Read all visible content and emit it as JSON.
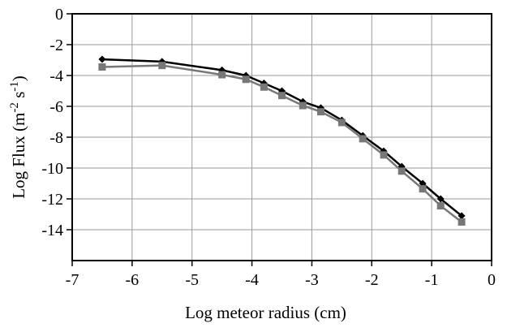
{
  "chart_data": {
    "type": "line",
    "xlabel": "Log meteor radius (cm)",
    "ylabel_main": "Log Flux (m",
    "ylabel_exp1": "-2",
    "ylabel_mid": " s",
    "ylabel_exp2": "-1",
    "ylabel_end": ")",
    "xlim": [
      -7,
      0
    ],
    "ylim": [
      -16,
      0
    ],
    "xticks": [
      -7,
      -6,
      -5,
      -4,
      -3,
      -2,
      -1,
      0
    ],
    "yticks": [
      0,
      -2,
      -4,
      -6,
      -8,
      -10,
      -12,
      -14
    ],
    "xtick_labels": [
      "-7",
      "-6",
      "-5",
      "-4",
      "-3",
      "-2",
      "-1",
      "0"
    ],
    "ytick_labels": [
      "0",
      "-2",
      "-4",
      "-6",
      "-8",
      "-10",
      "-12",
      "-14"
    ],
    "grid": true,
    "series": [
      {
        "color": "#000000",
        "marker": "diamond",
        "x": [
          -6.5,
          -5.5,
          -4.5,
          -4.1,
          -3.8,
          -3.5,
          -3.15,
          -2.85,
          -2.5,
          -2.15,
          -1.8,
          -1.5,
          -1.15,
          -0.85,
          -0.5
        ],
        "y": [
          -2.95,
          -3.1,
          -3.65,
          -4.0,
          -4.5,
          -5.0,
          -5.7,
          -6.1,
          -6.9,
          -7.9,
          -8.9,
          -9.9,
          -11.0,
          -12.0,
          -13.1
        ]
      },
      {
        "color": "#777777",
        "marker": "square",
        "x": [
          -6.5,
          -5.5,
          -4.5,
          -4.1,
          -3.8,
          -3.5,
          -3.15,
          -2.85,
          -2.5,
          -2.15,
          -1.8,
          -1.5,
          -1.15,
          -0.85,
          -0.5
        ],
        "y": [
          -3.45,
          -3.35,
          -3.95,
          -4.25,
          -4.75,
          -5.3,
          -5.95,
          -6.35,
          -7.05,
          -8.1,
          -9.15,
          -10.2,
          -11.35,
          -12.45,
          -13.5
        ]
      }
    ]
  }
}
